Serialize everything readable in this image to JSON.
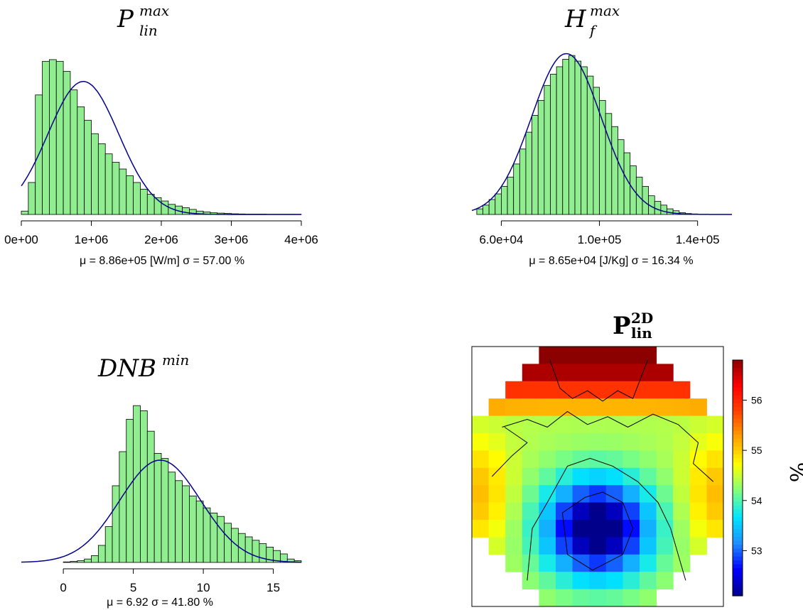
{
  "chart_data": [
    {
      "type": "bar",
      "id": "plin",
      "title_main": "P",
      "title_sup": "max",
      "title_sub": "lin",
      "xlim": [
        0,
        4000000
      ],
      "ticks": [
        "0e+00",
        "1e+06",
        "2e+06",
        "3e+06",
        "4e+06"
      ],
      "tick_values": [
        0,
        1000000,
        2000000,
        3000000,
        4000000
      ],
      "bin_width": 100000,
      "bin_start": 0,
      "frequencies": [
        2,
        19,
        71,
        91,
        92,
        91,
        85,
        74,
        64,
        56,
        48,
        42,
        36,
        31,
        27,
        23,
        19,
        15,
        12,
        10,
        8,
        6,
        5,
        4,
        3,
        2,
        1.5,
        1,
        0.8,
        0.6,
        0.4,
        0.3,
        0.2,
        0.2,
        0.2,
        0.1,
        0.1,
        0.1,
        0.1,
        0.1
      ],
      "ymax": 100,
      "normal_mean": 886000,
      "normal_sd": 505000,
      "normal_peak": 79,
      "stat_text": "μ = 8.86e+05 [W/m] σ = 57.00 %"
    },
    {
      "type": "bar",
      "id": "hf",
      "title_main": "H",
      "title_sup": "max",
      "title_sub": "f",
      "xlim": [
        48000,
        154000
      ],
      "ticks": [
        "6.0e+04",
        "1.0e+05",
        "1.4e+05"
      ],
      "tick_values": [
        60000,
        100000,
        140000
      ],
      "bin_width": 2500,
      "bin_start": 50000,
      "frequencies": [
        3,
        5,
        8,
        11,
        15,
        20,
        27,
        35,
        44,
        53,
        61,
        69,
        75,
        79,
        83,
        85,
        82,
        79,
        74,
        68,
        61,
        54,
        47,
        40,
        33,
        26,
        20,
        15,
        10,
        7,
        5,
        3,
        2,
        1,
        0.5,
        0.3
      ],
      "ymax": 90,
      "normal_mean": 86500,
      "normal_sd": 14150,
      "normal_peak": 86,
      "stat_text": "μ = 8.65e+04 [J/Kg] σ = 16.34 %"
    },
    {
      "type": "bar",
      "id": "dnb",
      "title_main": "DNB",
      "title_sup": "min",
      "xlim": [
        -3,
        17
      ],
      "ticks": [
        "0",
        "5",
        "10",
        "15"
      ],
      "tick_values": [
        0,
        5,
        10,
        15
      ],
      "bin_width": 0.5,
      "bin_start": 0,
      "frequencies": [
        0.3,
        0.6,
        1,
        2,
        4,
        10,
        21,
        45,
        65,
        84,
        92,
        89,
        77,
        64,
        61,
        53,
        48,
        45,
        39,
        36,
        32,
        29,
        27,
        23,
        20,
        17,
        15,
        13,
        11,
        9,
        7,
        5,
        2,
        1
      ],
      "ymax": 100,
      "normal_mean": 6.92,
      "normal_sd": 2.893,
      "normal_peak": 60,
      "stat_text": "μ = 6.92  σ = 41.80 %"
    },
    {
      "type": "heatmap",
      "id": "plin2d",
      "title_main": "P",
      "title_sup": "2D",
      "title_sub": "lin",
      "colorbar_ticks": [
        "53",
        "54",
        "55",
        "56"
      ],
      "colorbar_values": [
        53,
        54,
        55,
        56
      ],
      "colorbar_range": [
        52.1,
        56.8
      ],
      "colorbar_label": "%",
      "nx": 15,
      "ny": 15,
      "colorscale": [
        "#00008b",
        "#0000ff",
        "#1e90ff",
        "#00e5ff",
        "#7fff7f",
        "#ffff00",
        "#ffa500",
        "#ff4500",
        "#ff0000",
        "#8b0000"
      ]
    }
  ]
}
